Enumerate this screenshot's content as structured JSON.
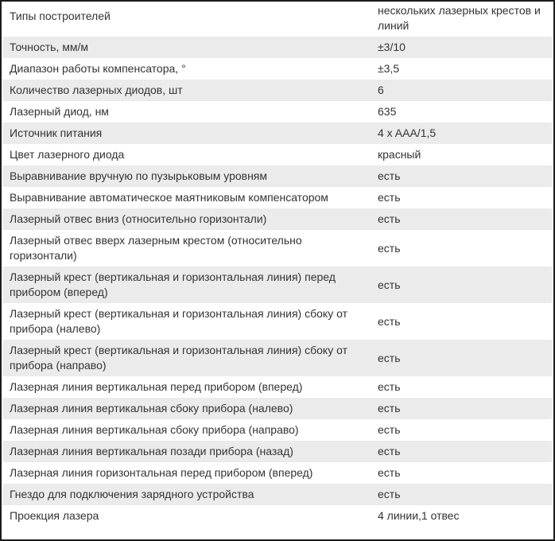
{
  "colors": {
    "row_stripe": "#ebebeb",
    "text": "#333333",
    "frame_border": "#1c1c1c",
    "background": "#ffffff"
  },
  "table": {
    "rows": [
      {
        "label": "Типы построителей",
        "value": "нескольких лазерных крестов и линий"
      },
      {
        "label": "Точность, мм/м",
        "value": "±3/10"
      },
      {
        "label": "Диапазон работы компенсатора, °",
        "value": "±3,5"
      },
      {
        "label": "Количество лазерных диодов, шт",
        "value": "6"
      },
      {
        "label": "Лазерный диод, нм",
        "value": "635"
      },
      {
        "label": "Источник питания",
        "value": "4 x AAA/1,5"
      },
      {
        "label": "Цвет лазерного диода",
        "value": "красный"
      },
      {
        "label": "Выравнивание вручную по пузырьковым уровням",
        "value": "есть"
      },
      {
        "label": "Выравнивание автоматическое маятниковым компенсатором",
        "value": "есть"
      },
      {
        "label": "Лазерный отвес вниз (относительно горизонтали)",
        "value": "есть"
      },
      {
        "label": "Лазерный отвес вверх лазерным крестом (относительно горизонтали)",
        "value": "есть"
      },
      {
        "label": "Лазерный крест (вертикальная и горизонтальная линия) перед прибором (вперед)",
        "value": "есть"
      },
      {
        "label": "Лазерный крест (вертикальная и горизонтальная линия) сбоку от прибора (налево)",
        "value": "есть"
      },
      {
        "label": "Лазерный крест (вертикальная и горизонтальная линия) сбоку от прибора (направо)",
        "value": "есть"
      },
      {
        "label": "Лазерная линия вертикальная перед прибором (вперед)",
        "value": "есть"
      },
      {
        "label": "Лазерная линия вертикальная сбоку прибора (налево)",
        "value": "есть"
      },
      {
        "label": "Лазерная линия вертикальная сбоку прибора (направо)",
        "value": "есть"
      },
      {
        "label": "Лазерная линия вертикальная позади прибора (назад)",
        "value": "есть"
      },
      {
        "label": "Лазерная линия горизонтальная перед прибором (вперед)",
        "value": "есть"
      },
      {
        "label": "Гнездо для подключения зарядного устройства",
        "value": "есть"
      },
      {
        "label": "Проекция лазера",
        "value": "4 линии,1 отвес"
      }
    ]
  }
}
